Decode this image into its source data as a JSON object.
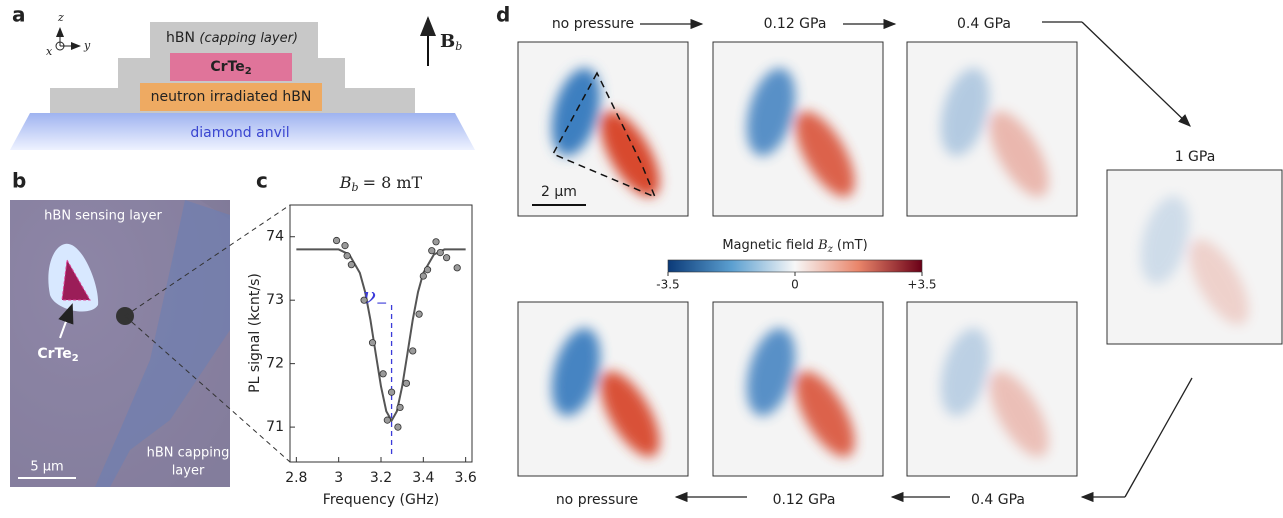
{
  "panel_labels": [
    "a",
    "b",
    "c",
    "d"
  ],
  "schematic": {
    "capping_layer": {
      "name": "hBN",
      "note": "(capping layer)"
    },
    "sample": {
      "base": "CrTe",
      "sub": "2"
    },
    "irradiated_layer": "neutron irradiated hBN",
    "anvil": "diamond anvil",
    "axes": {
      "z": "z",
      "x": "x",
      "y": "y"
    },
    "field": {
      "symbol": "B",
      "sub": "b"
    }
  },
  "micrograph": {
    "sensing_layer": "hBN sensing layer",
    "sample": {
      "base": "CrTe",
      "sub": "2"
    },
    "capping_layer": [
      "hBN capping",
      "layer"
    ],
    "scale_bar": "5 μm"
  },
  "chart_data": {
    "type": "scatter",
    "title": {
      "symbol": "B",
      "sub": "b",
      "text": "= 8 mT"
    },
    "x_label": "Frequency (GHz)",
    "y_label": "PL signal (kcnt/s)",
    "x": [
      2.99,
      3.03,
      3.04,
      3.06,
      3.12,
      3.16,
      3.21,
      3.23,
      3.25,
      3.28,
      3.29,
      3.32,
      3.35,
      3.38,
      3.4,
      3.42,
      3.44,
      3.46,
      3.48,
      3.51,
      3.56
    ],
    "values": [
      73.94,
      73.86,
      73.7,
      73.56,
      73.0,
      72.33,
      71.84,
      71.11,
      71.55,
      71.0,
      71.31,
      71.69,
      72.2,
      72.78,
      73.38,
      73.48,
      73.78,
      73.92,
      73.75,
      73.67,
      73.51
    ],
    "color": "#9a9a9a",
    "fit": {
      "x": [
        2.8,
        2.9,
        3.0,
        3.05,
        3.1,
        3.125,
        3.15,
        3.175,
        3.2,
        3.225,
        3.25,
        3.275,
        3.3,
        3.325,
        3.35,
        3.375,
        3.4,
        3.45,
        3.5,
        3.6
      ],
      "values": [
        73.8,
        73.8,
        73.8,
        73.72,
        73.43,
        73.13,
        72.69,
        72.16,
        71.64,
        71.25,
        71.1,
        71.25,
        71.64,
        72.16,
        72.69,
        73.13,
        73.43,
        73.72,
        73.8,
        73.8
      ],
      "color": "#555555"
    },
    "annotation": {
      "symbol": "ν",
      "sub": "−",
      "x": 3.25,
      "color": "#3b3bd9"
    },
    "xlim": [
      2.77,
      3.63
    ],
    "ylim": [
      70.45,
      74.5
    ],
    "xticks": [
      2.8,
      3.0,
      3.2,
      3.4,
      3.6
    ],
    "yticks": [
      71,
      72,
      73,
      74
    ]
  },
  "maps": {
    "top_row": [
      "no pressure",
      "0.12 GPa",
      "0.4 GPa"
    ],
    "side": "1 GPa",
    "bottom_row": [
      "no pressure",
      "0.12 GPa",
      "0.4 GPa"
    ],
    "scale_bar": "2 μm",
    "colorbar": {
      "label": "Magnetic field",
      "symbol": "B",
      "sub": "z",
      "unit": "(mT)",
      "lim": [
        -3.5,
        3.5
      ],
      "ticks": [
        -3.5,
        0,
        {
          "value": 3.5,
          "label": "+3.5"
        }
      ]
    }
  }
}
